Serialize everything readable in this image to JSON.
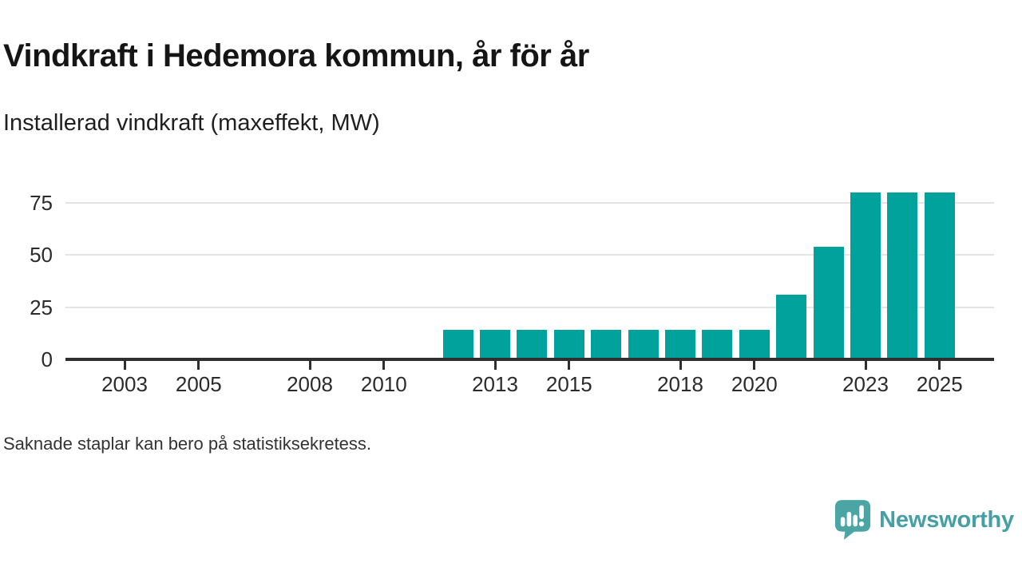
{
  "header": {
    "title": "Vindkraft i Hedemora kommun, år för år",
    "subtitle": "Installerad vindkraft (maxeffekt, MW)"
  },
  "footnote": "Saknade staplar kan bero på statistiksekretess.",
  "branding": {
    "wordmark": "Newsworthy",
    "icon": "speech-bubble-with-bar-chart-and-exclamation",
    "icon_color": "#4ba5a4",
    "wordmark_color": "#44a0a4"
  },
  "chart_data": {
    "type": "bar",
    "title": "Vindkraft i Hedemora kommun, år för år",
    "subtitle": "Installerad vindkraft (maxeffekt, MW)",
    "unit": "MW",
    "bar_color": "#00a29b",
    "grid": "horizontal",
    "legend": "none",
    "x_range_years": [
      2002,
      2025
    ],
    "years_without_bars": [
      2002,
      2003,
      2004,
      2005,
      2006,
      2007,
      2008,
      2009,
      2010,
      2011
    ],
    "x_tick_years": [
      2003,
      2005,
      2008,
      2010,
      2013,
      2015,
      2018,
      2020,
      2023,
      2025
    ],
    "y_ticks": [
      0,
      25,
      50,
      75
    ],
    "ylim": [
      0,
      83
    ],
    "series": [
      {
        "name": "Installerad vindkraft (maxeffekt, MW)",
        "points": [
          {
            "year": 2012,
            "value": 14
          },
          {
            "year": 2013,
            "value": 14
          },
          {
            "year": 2014,
            "value": 14
          },
          {
            "year": 2015,
            "value": 14
          },
          {
            "year": 2016,
            "value": 14
          },
          {
            "year": 2017,
            "value": 14
          },
          {
            "year": 2018,
            "value": 14
          },
          {
            "year": 2019,
            "value": 14
          },
          {
            "year": 2020,
            "value": 14
          },
          {
            "year": 2021,
            "value": 31
          },
          {
            "year": 2022,
            "value": 54
          },
          {
            "year": 2023,
            "value": 80
          },
          {
            "year": 2024,
            "value": 80
          },
          {
            "year": 2025,
            "value": 80
          }
        ]
      }
    ]
  }
}
